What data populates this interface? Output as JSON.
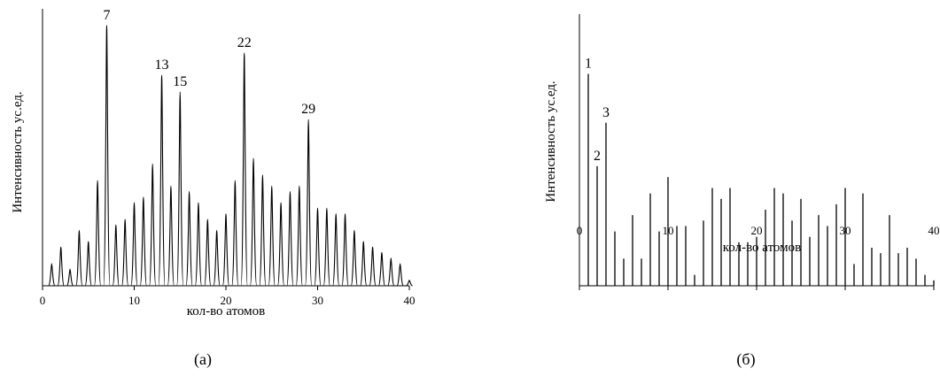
{
  "chart_data": [
    {
      "type": "line",
      "panel_label": "(а)",
      "xlabel": "кол-во атомов",
      "ylabel": "Интенсивность ус.ед.",
      "xlim": [
        0,
        40
      ],
      "ylim": [
        0,
        1.0
      ],
      "xticks": [
        0,
        10,
        20,
        30,
        40
      ],
      "y_ticks_labeled": false,
      "peak_shape": "sharp spectral peaks at integer atom counts",
      "x": [
        1,
        2,
        3,
        4,
        5,
        6,
        7,
        8,
        9,
        10,
        11,
        12,
        13,
        14,
        15,
        16,
        17,
        18,
        19,
        20,
        21,
        22,
        23,
        24,
        25,
        26,
        27,
        28,
        29,
        30,
        31,
        32,
        33,
        34,
        35,
        36,
        37,
        38,
        39,
        40
      ],
      "values": [
        0.08,
        0.14,
        0.06,
        0.2,
        0.16,
        0.38,
        0.94,
        0.22,
        0.24,
        0.3,
        0.32,
        0.44,
        0.76,
        0.36,
        0.7,
        0.34,
        0.3,
        0.24,
        0.2,
        0.26,
        0.38,
        0.84,
        0.46,
        0.4,
        0.36,
        0.3,
        0.34,
        0.36,
        0.6,
        0.28,
        0.28,
        0.26,
        0.26,
        0.2,
        0.16,
        0.14,
        0.12,
        0.1,
        0.08,
        0.02
      ],
      "annotations": [
        {
          "x": 7,
          "text": "7"
        },
        {
          "x": 13,
          "text": "13"
        },
        {
          "x": 15,
          "text": "15"
        },
        {
          "x": 22,
          "text": "22"
        },
        {
          "x": 29,
          "text": "29"
        }
      ]
    },
    {
      "type": "line",
      "panel_label": "(б)",
      "xlabel": "кол-во атомов",
      "ylabel": "Интенсивность ус.ед.",
      "xlim": [
        0,
        40
      ],
      "ylim": [
        0,
        1.0
      ],
      "xticks": [
        0,
        10,
        20,
        30,
        40
      ],
      "y_ticks_labeled": false,
      "peak_shape": "thin sticks at integer atom counts",
      "x": [
        1,
        2,
        3,
        4,
        5,
        6,
        7,
        8,
        9,
        10,
        11,
        12,
        13,
        14,
        15,
        16,
        17,
        18,
        19,
        20,
        21,
        22,
        23,
        24,
        25,
        26,
        27,
        28,
        29,
        30,
        31,
        32,
        33,
        34,
        35,
        36,
        37,
        38,
        39,
        40
      ],
      "values": [
        0.78,
        0.44,
        0.6,
        0.2,
        0.1,
        0.26,
        0.1,
        0.34,
        0.2,
        0.4,
        0.22,
        0.22,
        0.04,
        0.24,
        0.36,
        0.32,
        0.36,
        0.16,
        0.16,
        0.18,
        0.28,
        0.36,
        0.34,
        0.24,
        0.32,
        0.18,
        0.26,
        0.22,
        0.3,
        0.36,
        0.08,
        0.34,
        0.14,
        0.12,
        0.26,
        0.12,
        0.14,
        0.1,
        0.04,
        0.02
      ],
      "annotations": [
        {
          "x": 1,
          "text": "1"
        },
        {
          "x": 2,
          "text": "2"
        },
        {
          "x": 3,
          "text": "3"
        }
      ]
    }
  ]
}
